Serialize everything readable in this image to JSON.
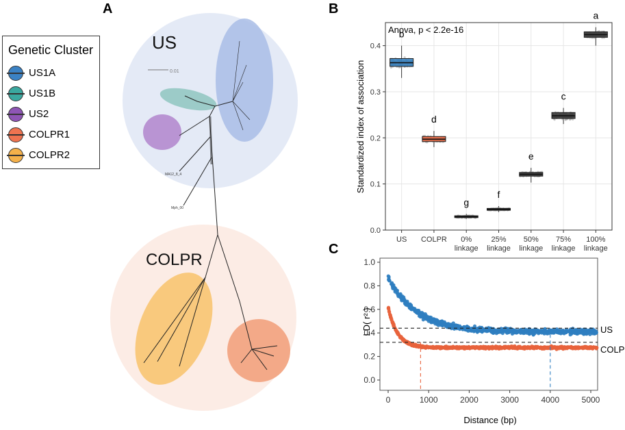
{
  "panels": {
    "a": "A",
    "b": "B",
    "c": "C"
  },
  "legend": {
    "title": "Genetic Cluster",
    "items": [
      {
        "label": "US1A",
        "color": "#3b82c4"
      },
      {
        "label": "US1B",
        "color": "#3aa8a0"
      },
      {
        "label": "US2",
        "color": "#8e55b5"
      },
      {
        "label": "COLPR1",
        "color": "#ee7350"
      },
      {
        "label": "COLPR2",
        "color": "#f5b14a"
      }
    ]
  },
  "tree": {
    "us_label": "US",
    "colpr_label": "COLPR",
    "scale_label": "0.01",
    "tip_labels": [
      "MA12_8_4",
      "Mph_00"
    ]
  },
  "chart_data": [
    {
      "type": "boxplot",
      "title": "Anova, p < 2.2e-16",
      "ylabel": "Standardized index of association",
      "xlabel": "",
      "ylim": [
        0,
        0.45
      ],
      "yticks": [
        0.0,
        0.1,
        0.2,
        0.3,
        0.4
      ],
      "ytick_labels": [
        "0.0",
        "0.1",
        "0.2",
        "0.3",
        "0.4"
      ],
      "categories": [
        "US",
        "COLPR",
        "0%\nlinkage",
        "25%\nlinkage",
        "50%\nlinkage",
        "75%\nlinkage",
        "100%\nlinkage"
      ],
      "boxes": [
        {
          "q1": 0.355,
          "median": 0.363,
          "q3": 0.372,
          "min": 0.33,
          "max": 0.4,
          "color": "#2f7ec0",
          "letter": "b"
        },
        {
          "q1": 0.192,
          "median": 0.197,
          "q3": 0.203,
          "min": 0.18,
          "max": 0.215,
          "color": "#e8633c",
          "letter": "d"
        },
        {
          "q1": 0.027,
          "median": 0.029,
          "q3": 0.031,
          "min": 0.024,
          "max": 0.035,
          "color": "#333333",
          "letter": "g"
        },
        {
          "q1": 0.043,
          "median": 0.045,
          "q3": 0.047,
          "min": 0.039,
          "max": 0.052,
          "color": "#333333",
          "letter": "f"
        },
        {
          "q1": 0.117,
          "median": 0.121,
          "q3": 0.125,
          "min": 0.103,
          "max": 0.135,
          "color": "#333333",
          "letter": "e"
        },
        {
          "q1": 0.242,
          "median": 0.248,
          "q3": 0.255,
          "min": 0.23,
          "max": 0.265,
          "color": "#333333",
          "letter": "c"
        },
        {
          "q1": 0.418,
          "median": 0.424,
          "q3": 0.43,
          "min": 0.4,
          "max": 0.44,
          "color": "#333333",
          "letter": "a"
        }
      ]
    },
    {
      "type": "scatter",
      "xlabel": "Distance (bp)",
      "ylabel": "LD( r² )",
      "xlim": [
        0,
        5200
      ],
      "ylim": [
        0,
        1.0
      ],
      "xticks": [
        0,
        1000,
        2000,
        3000,
        4000,
        5000
      ],
      "yticks": [
        0.0,
        0.2,
        0.4,
        0.6,
        0.8,
        1.0
      ],
      "xtick_labels": [
        "0",
        "1000",
        "2000",
        "3000",
        "4000",
        "5000"
      ],
      "ytick_labels": [
        "0.0",
        "0.2",
        "0.4",
        "0.6",
        "0.8",
        "1.0"
      ],
      "series": [
        {
          "name": "US",
          "color": "#2f7ec0",
          "start": 0.87,
          "plateau": 0.41,
          "decay_bp": 700,
          "hline": 0.44,
          "vline": 4000
        },
        {
          "name": "COLPR",
          "color": "#e8633c",
          "start": 0.62,
          "plateau": 0.275,
          "decay_bp": 230,
          "hline": 0.32,
          "vline": 800
        }
      ]
    }
  ]
}
